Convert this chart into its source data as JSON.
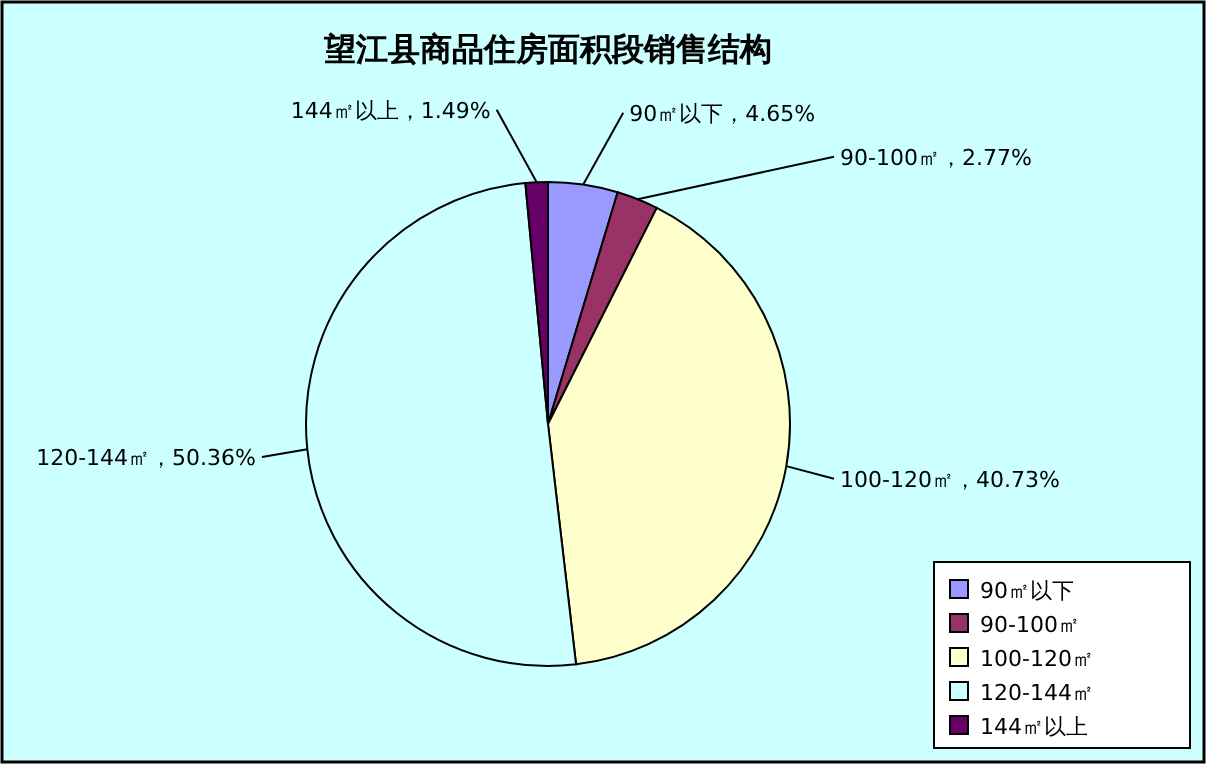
{
  "chart_data": {
    "type": "pie",
    "title": "望江县商品住房面积段销售结构",
    "categories": [
      "90㎡以下",
      "90-100㎡",
      "100-120㎡",
      "120-144㎡",
      "144㎡以上"
    ],
    "values": [
      4.65,
      2.77,
      40.73,
      50.36,
      1.49
    ],
    "colors": [
      "#9999ff",
      "#993366",
      "#ffffcc",
      "#ccffff",
      "#660066"
    ],
    "value_labels": [
      "90㎡以下，4.65%",
      "90-100㎡，2.77%",
      "100-120㎡，40.73%",
      "120-144㎡，50.36%",
      "144㎡以上，1.49%"
    ],
    "legend": "bottom right"
  }
}
